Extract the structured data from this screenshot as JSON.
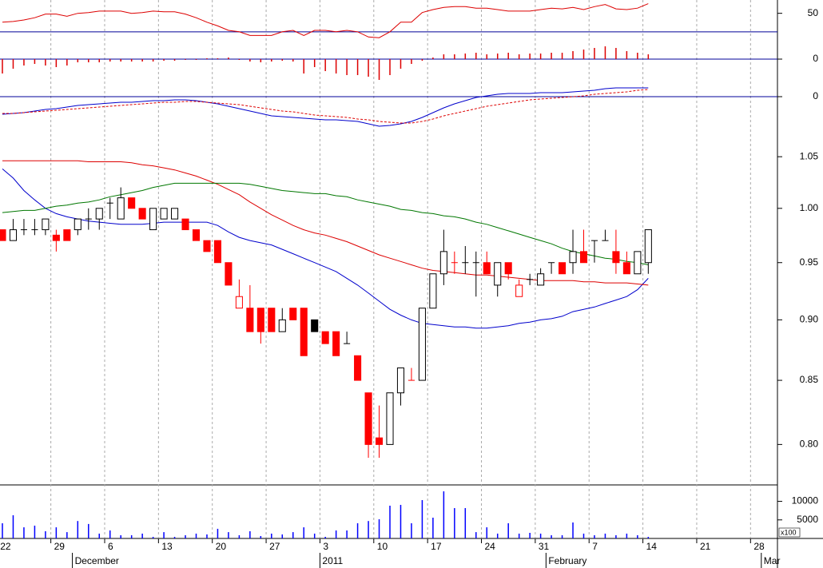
{
  "chart_data": [
    {
      "type": "line",
      "ylim": [
        14,
        68
      ],
      "yticks": [
        50
      ],
      "reference_line": 25,
      "reference_color": "#000099",
      "series": [
        {
          "color": "#dd0000",
          "values": [
            38,
            39,
            41,
            44,
            49,
            49,
            46,
            50,
            51,
            53,
            53,
            53,
            50,
            51,
            53,
            52,
            52,
            49,
            44,
            38,
            33,
            27,
            25,
            20,
            20,
            20,
            25,
            27,
            20,
            27,
            27,
            25,
            27,
            25,
            18,
            17,
            25,
            38,
            38,
            51,
            55,
            58,
            59,
            59,
            57,
            57,
            55,
            53,
            53,
            53,
            55,
            57,
            56,
            58,
            55,
            59,
            62,
            56,
            55,
            57,
            63,
            null,
            null,
            null,
            null,
            null,
            null,
            null,
            null,
            null,
            null,
            null
          ]
        }
      ]
    },
    {
      "type": "bar",
      "ylim": [
        -30,
        22
      ],
      "yticks": [
        0
      ],
      "grid": true,
      "grid_color": "#000099",
      "color": "#dd0000",
      "values": [
        -18,
        -12,
        -8,
        -6,
        -8,
        -10,
        -8,
        -4,
        -4,
        -4,
        -3,
        -3,
        -3,
        -3,
        -3,
        -2,
        -2,
        -1,
        -1,
        1,
        1,
        2,
        -1,
        -3,
        -4,
        -3,
        -2,
        -3,
        -18,
        -10,
        -15,
        -18,
        -20,
        -20,
        -22,
        -26,
        -20,
        -12,
        -6,
        -2,
        2,
        6,
        6,
        7,
        8,
        6,
        7,
        8,
        6,
        7,
        7,
        8,
        8,
        10,
        12,
        14,
        16,
        14,
        10,
        8,
        6,
        null,
        null,
        null,
        null,
        null,
        null,
        null,
        null,
        null,
        null,
        null
      ]
    },
    {
      "type": "line",
      "ylim": [
        -50,
        15
      ],
      "yticks": [
        0
      ],
      "grid": true,
      "grid_color": "#000099",
      "series": [
        {
          "color": "#0000cc",
          "values": [
            -22,
            -21,
            -20,
            -18,
            -16,
            -15,
            -13,
            -11,
            -10,
            -9,
            -8,
            -7,
            -7,
            -6,
            -5,
            -5,
            -4,
            -4,
            -5,
            -7,
            -9,
            -12,
            -15,
            -18,
            -21,
            -24,
            -25,
            -26,
            -27,
            -28,
            -29,
            -29,
            -30,
            -31,
            -34,
            -37,
            -36,
            -34,
            -31,
            -26,
            -20,
            -14,
            -9,
            -5,
            -1,
            1,
            3,
            4,
            4,
            4,
            5,
            5,
            5,
            6,
            7,
            8,
            10,
            11,
            11,
            11,
            11,
            null,
            null,
            null,
            null,
            null,
            null,
            null,
            null,
            null,
            null,
            null
          ]
        },
        {
          "color": "#dd0000",
          "dashed": true,
          "values": [
            -21,
            -21,
            -20,
            -19,
            -18,
            -17,
            -16,
            -15,
            -14,
            -13,
            -12,
            -11,
            -10,
            -9,
            -8,
            -7,
            -7,
            -6,
            -6,
            -7,
            -8,
            -9,
            -10,
            -12,
            -14,
            -16,
            -18,
            -19,
            -21,
            -23,
            -24,
            -25,
            -26,
            -28,
            -29,
            -31,
            -32,
            -33,
            -33,
            -31,
            -28,
            -24,
            -21,
            -18,
            -15,
            -12,
            -10,
            -8,
            -6,
            -4,
            -3,
            -2,
            -1,
            0,
            1,
            3,
            4,
            5,
            6,
            8,
            9,
            null,
            null,
            null,
            null,
            null,
            null,
            null,
            null,
            null,
            null,
            null
          ]
        }
      ]
    },
    {
      "type": "candlestick",
      "log": true,
      "ylim": [
        0.77,
        1.075
      ],
      "yticks": [
        {
          "value": 0.8,
          "label": "0.80"
        },
        0.85,
        {
          "value": 0.9,
          "label": "0.90"
        },
        0.95,
        {
          "value": 1.0,
          "label": "1.00"
        },
        1.05
      ],
      "xgrid": true,
      "up_color": "#000000",
      "down_color": "#ff0000",
      "categories": [
        "22",
        null,
        null,
        null,
        null,
        "29",
        null,
        null,
        null,
        null,
        "6",
        null,
        null,
        null,
        null,
        "13",
        null,
        null,
        null,
        null,
        "20",
        null,
        null,
        null,
        null,
        "27",
        null,
        null,
        null,
        null,
        "3",
        null,
        null,
        null,
        null,
        "10",
        null,
        null,
        null,
        null,
        "17",
        null,
        null,
        null,
        null,
        "24",
        null,
        null,
        null,
        null,
        "31",
        null,
        null,
        null,
        null,
        "7",
        null,
        null,
        null,
        null,
        "14",
        null,
        null,
        null,
        null,
        "21",
        null,
        null,
        null,
        null,
        "28",
        null
      ],
      "month_categories": [
        null,
        null,
        null,
        null,
        null,
        null,
        null,
        "December",
        null,
        null,
        null,
        null,
        null,
        null,
        null,
        null,
        null,
        null,
        null,
        null,
        null,
        null,
        null,
        null,
        null,
        null,
        null,
        null,
        null,
        null,
        "2011",
        null,
        null,
        null,
        null,
        null,
        null,
        null,
        null,
        null,
        null,
        null,
        null,
        null,
        null,
        null,
        null,
        null,
        null,
        null,
        null,
        "February",
        null,
        null,
        null,
        null,
        null,
        null,
        null,
        null,
        null,
        null,
        null,
        null,
        null,
        null,
        null,
        null,
        null,
        null,
        null,
        "Mar"
      ],
      "open": [
        0.98,
        0.97,
        0.98,
        0.98,
        0.98,
        0.975,
        0.98,
        0.98,
        0.99,
        0.99,
        1.005,
        0.99,
        1.01,
        1.0,
        0.98,
        0.99,
        0.99,
        0.99,
        0.98,
        0.97,
        0.97,
        0.95,
        0.91,
        0.91,
        0.91,
        0.91,
        0.89,
        0.91,
        0.91,
        0.9,
        0.89,
        0.89,
        0.88,
        0.87,
        0.84,
        0.805,
        0.8,
        0.84,
        0.85,
        0.85,
        0.91,
        0.94,
        0.95,
        0.95,
        0.95,
        0.95,
        0.93,
        0.95,
        0.92,
        0.935,
        0.93,
        0.95,
        0.95,
        0.95,
        0.96,
        0.97,
        0.97,
        0.96,
        0.95,
        0.94,
        0.95,
        null,
        null,
        null,
        null,
        null,
        null,
        null,
        null,
        null,
        null,
        null
      ],
      "high": [
        0.98,
        0.99,
        0.99,
        0.99,
        0.99,
        0.98,
        0.98,
        0.99,
        1.0,
        1.0,
        1.01,
        1.02,
        1.01,
        1.0,
        1.0,
        1.0,
        1.0,
        0.99,
        0.98,
        0.97,
        0.97,
        0.95,
        0.935,
        0.93,
        0.91,
        0.91,
        0.91,
        0.91,
        0.91,
        0.9,
        0.89,
        0.89,
        0.89,
        0.87,
        0.84,
        0.83,
        0.84,
        0.86,
        0.86,
        0.91,
        0.94,
        0.98,
        0.96,
        0.965,
        0.96,
        0.96,
        0.95,
        0.95,
        0.935,
        0.94,
        0.945,
        0.95,
        0.95,
        0.98,
        0.98,
        0.97,
        0.98,
        0.98,
        0.96,
        0.96,
        0.98,
        null,
        null,
        null,
        null,
        null,
        null,
        null,
        null,
        null,
        null,
        null
      ],
      "low": [
        0.97,
        0.97,
        0.975,
        0.975,
        0.975,
        0.96,
        0.97,
        0.975,
        0.98,
        0.98,
        0.99,
        0.99,
        1.0,
        0.99,
        0.98,
        0.99,
        0.99,
        0.98,
        0.97,
        0.96,
        0.95,
        0.93,
        0.91,
        0.89,
        0.88,
        0.89,
        0.89,
        0.9,
        0.87,
        0.89,
        0.88,
        0.87,
        0.88,
        0.85,
        0.79,
        0.79,
        0.8,
        0.83,
        0.85,
        0.85,
        0.91,
        0.93,
        0.94,
        0.94,
        0.92,
        0.94,
        0.92,
        0.935,
        0.92,
        0.93,
        0.93,
        0.94,
        0.94,
        0.94,
        0.95,
        0.95,
        0.97,
        0.94,
        0.94,
        0.94,
        0.94,
        null,
        null,
        null,
        null,
        null,
        null,
        null,
        null,
        null,
        null,
        null
      ],
      "close": [
        0.97,
        0.98,
        0.98,
        0.98,
        0.99,
        0.97,
        0.97,
        0.99,
        0.99,
        1.0,
        1.005,
        1.01,
        1.0,
        0.99,
        1.0,
        1.0,
        1.0,
        0.98,
        0.97,
        0.96,
        0.95,
        0.93,
        0.92,
        0.89,
        0.89,
        0.89,
        0.9,
        0.9,
        0.87,
        0.89,
        0.88,
        0.87,
        0.88,
        0.85,
        0.8,
        0.8,
        0.84,
        0.86,
        0.85,
        0.91,
        0.94,
        0.96,
        0.95,
        0.95,
        0.95,
        0.94,
        0.95,
        0.94,
        0.93,
        0.935,
        0.94,
        0.95,
        0.94,
        0.96,
        0.95,
        0.97,
        0.97,
        0.95,
        0.94,
        0.96,
        0.98,
        null,
        null,
        null,
        null,
        null,
        null,
        null,
        null,
        null,
        null,
        null
      ],
      "series": [
        {
          "color": "#0000cc",
          "values": [
            1.038,
            1.029,
            1.017,
            1.008,
            1.0,
            0.995,
            0.992,
            0.99,
            0.988,
            0.987,
            0.986,
            0.985,
            0.985,
            0.985,
            0.986,
            0.987,
            0.987,
            0.987,
            0.987,
            0.987,
            0.984,
            0.978,
            0.973,
            0.97,
            0.968,
            0.966,
            0.962,
            0.958,
            0.954,
            0.95,
            0.946,
            0.942,
            0.936,
            0.93,
            0.923,
            0.916,
            0.909,
            0.904,
            0.9,
            0.897,
            0.896,
            0.895,
            0.894,
            0.894,
            0.893,
            0.893,
            0.894,
            0.895,
            0.897,
            0.898,
            0.9,
            0.901,
            0.903,
            0.907,
            0.909,
            0.911,
            0.914,
            0.917,
            0.92,
            0.926,
            0.936,
            null,
            null,
            null,
            null,
            null,
            null,
            null,
            null,
            null,
            null,
            null
          ]
        },
        {
          "color": "#dd0000",
          "values": [
            1.046,
            1.046,
            1.046,
            1.046,
            1.046,
            1.046,
            1.046,
            1.046,
            1.045,
            1.045,
            1.045,
            1.045,
            1.044,
            1.042,
            1.041,
            1.039,
            1.037,
            1.034,
            1.031,
            1.027,
            1.023,
            1.018,
            1.013,
            1.006,
            1.0,
            0.994,
            0.989,
            0.984,
            0.98,
            0.977,
            0.975,
            0.972,
            0.969,
            0.965,
            0.961,
            0.957,
            0.954,
            0.951,
            0.948,
            0.945,
            0.943,
            0.942,
            0.941,
            0.94,
            0.939,
            0.939,
            0.938,
            0.937,
            0.936,
            0.935,
            0.934,
            0.934,
            0.934,
            0.934,
            0.933,
            0.933,
            0.932,
            0.932,
            0.932,
            0.931,
            0.93,
            null,
            null,
            null,
            null,
            null,
            null,
            null,
            null,
            null,
            null,
            null
          ]
        },
        {
          "color": "#007700",
          "values": [
            0.996,
            0.997,
            0.998,
            0.998,
            1.0,
            1.002,
            1.003,
            1.005,
            1.006,
            1.008,
            1.011,
            1.013,
            1.015,
            1.017,
            1.02,
            1.022,
            1.024,
            1.024,
            1.024,
            1.024,
            1.024,
            1.024,
            1.024,
            1.023,
            1.021,
            1.019,
            1.017,
            1.016,
            1.015,
            1.014,
            1.014,
            1.012,
            1.011,
            1.008,
            1.006,
            1.004,
            1.002,
            0.999,
            0.998,
            0.996,
            0.995,
            0.993,
            0.992,
            0.99,
            0.987,
            0.985,
            0.982,
            0.979,
            0.976,
            0.973,
            0.97,
            0.967,
            0.963,
            0.96,
            0.958,
            0.956,
            0.954,
            0.953,
            0.951,
            0.95,
            0.948,
            null,
            null,
            null,
            null,
            null,
            null,
            null,
            null,
            null,
            null,
            null
          ]
        }
      ]
    },
    {
      "type": "bar",
      "ylim": [
        0,
        14000
      ],
      "yticks": [
        5000,
        10000
      ],
      "unit_label": "x100",
      "color": "#0000ff",
      "values": [
        4090,
        6250,
        3000,
        3450,
        1940,
        3000,
        1700,
        4700,
        3900,
        1300,
        2150,
        860,
        860,
        1300,
        430,
        1700,
        430,
        860,
        1300,
        1080,
        2600,
        1700,
        860,
        1940,
        650,
        1300,
        1080,
        1700,
        3000,
        1300,
        430,
        2150,
        2150,
        4090,
        4700,
        5170,
        8830,
        9050,
        4090,
        10340,
        5600,
        12700,
        8180,
        8180,
        1700,
        3000,
        1300,
        4090,
        1300,
        1510,
        1300,
        860,
        860,
        4300,
        1300,
        860,
        1300,
        860,
        1300,
        860,
        430,
        null,
        null,
        null,
        null,
        null,
        null,
        null,
        null,
        null,
        null,
        null
      ]
    }
  ]
}
